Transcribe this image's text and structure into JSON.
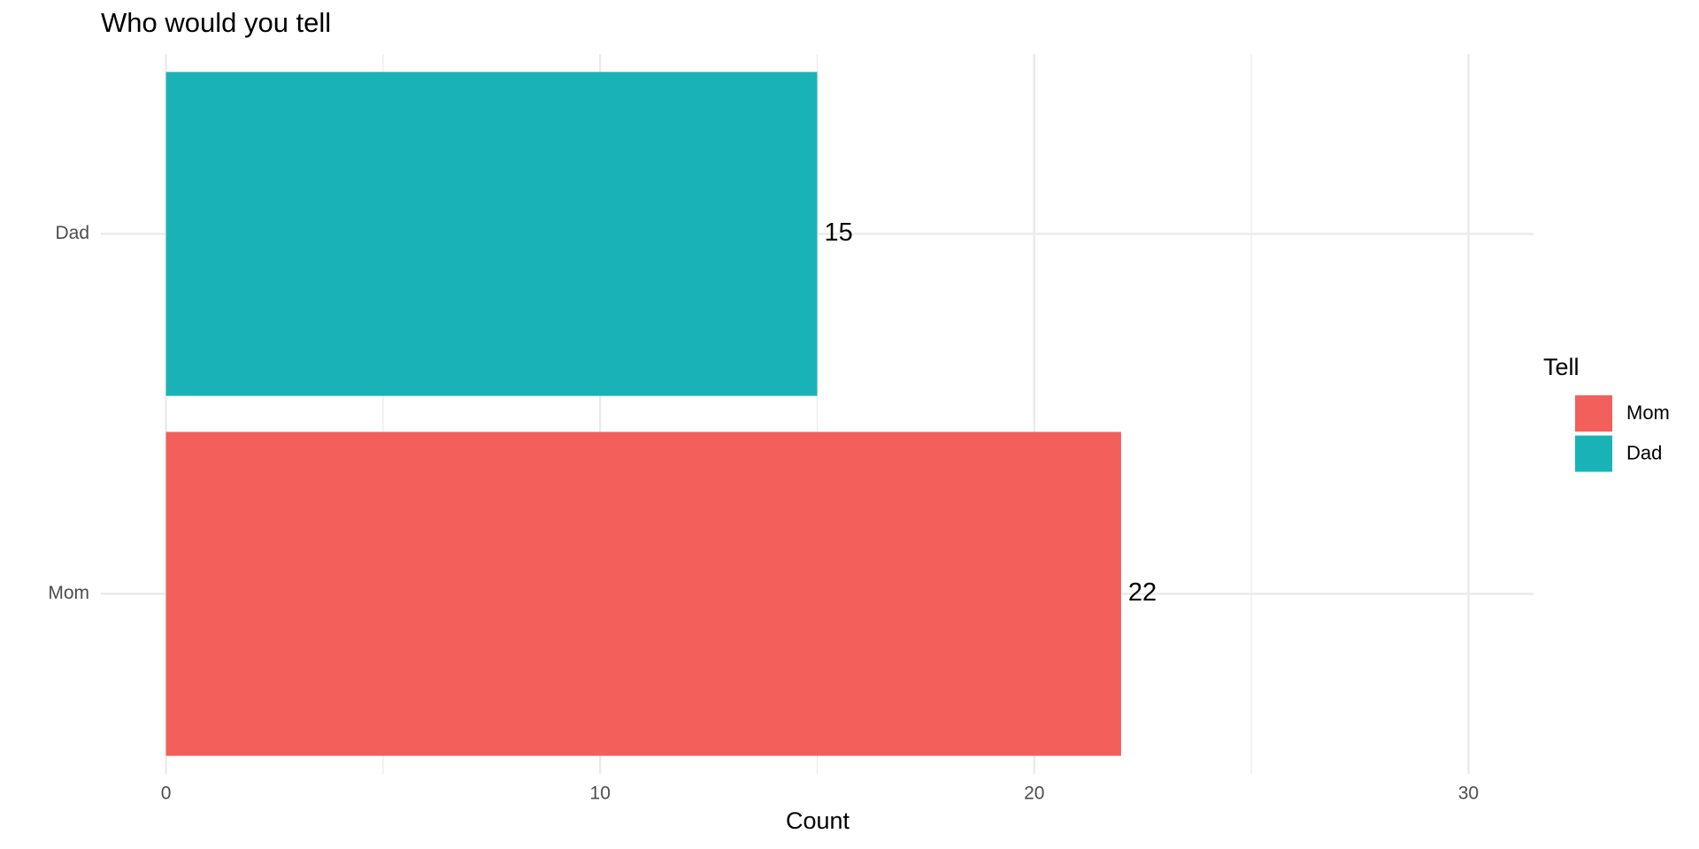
{
  "chart_data": {
    "type": "bar",
    "orientation": "horizontal",
    "title": "Who would you tell",
    "x_label": "Count",
    "legend_title": "Tell",
    "legend_position": "right",
    "categories": [
      "Mom",
      "Dad"
    ],
    "values": [
      22,
      15
    ],
    "colors": [
      "#F35F5B",
      "#19B3B7"
    ],
    "xlim": [
      -1.5,
      31.5
    ],
    "xticks": [
      0,
      10,
      20,
      30
    ],
    "xminorticks": [
      5,
      15,
      25
    ],
    "grid": true
  }
}
